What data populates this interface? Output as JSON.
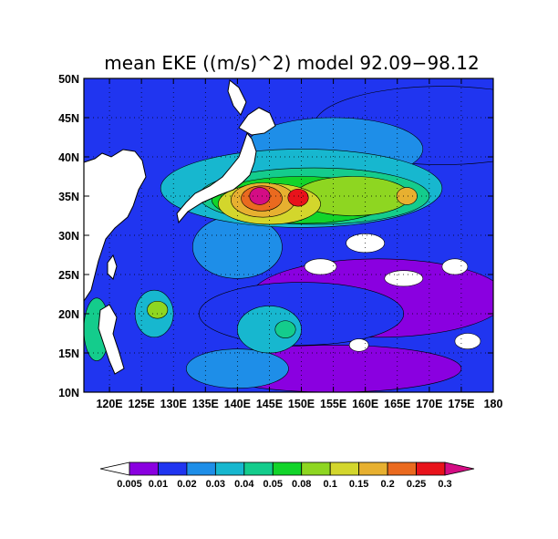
{
  "chart_data": {
    "type": "heatmap",
    "title": "mean EKE ((m/s)^2) model 92.09−98.12",
    "x_ticks": [
      "120E",
      "125E",
      "130E",
      "135E",
      "140E",
      "145E",
      "150E",
      "155E",
      "160E",
      "165E",
      "170E",
      "175E",
      "180"
    ],
    "y_ticks": [
      "50N",
      "45N",
      "40N",
      "35N",
      "30N",
      "25N",
      "20N",
      "15N",
      "10N"
    ],
    "xlim": [
      116,
      180
    ],
    "ylim": [
      10,
      50
    ],
    "grid": "dotted",
    "colorbar": {
      "labels": [
        "0.005",
        "0.01",
        "0.02",
        "0.03",
        "0.04",
        "0.05",
        "0.08",
        "0.1",
        "0.15",
        "0.2",
        "0.25",
        "0.3"
      ],
      "colors": [
        "#ffffff",
        "#8a00e0",
        "#2035f0",
        "#1e8ee8",
        "#17b7cf",
        "#14cc8c",
        "#12d42a",
        "#8ed621",
        "#d3d62c",
        "#e7b030",
        "#ea6a1f",
        "#e8131b",
        "#d40d84"
      ]
    },
    "highlights": [
      {
        "lon": 143.5,
        "lat": 35.0,
        "value": 0.3
      },
      {
        "lon": 149.5,
        "lat": 34.8,
        "value": 0.25
      },
      {
        "lon": 166.5,
        "lat": 35.0,
        "value": 0.15
      },
      {
        "lon": 127.5,
        "lat": 20.5,
        "value": 0.08
      },
      {
        "lon": 147.5,
        "lat": 18.0,
        "value": 0.04
      }
    ]
  }
}
